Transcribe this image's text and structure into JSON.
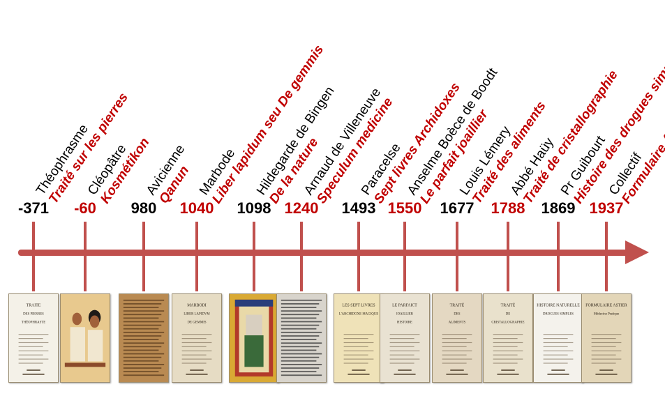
{
  "colors": {
    "accent": "#c0504d",
    "black": "#000000",
    "red": "#c00000"
  },
  "events": [
    {
      "year": "-371",
      "author": "Théophrasme",
      "title": "Traité sur les pierres",
      "year_color": "#000000",
      "thumb": {
        "kind": "titlepage",
        "bg": "#f4f1e8",
        "lines": [
          "TRAITE",
          "DES PIERRES",
          "THÉOPHRASTE"
        ]
      }
    },
    {
      "year": "-60",
      "author": "Cléopâtre",
      "title": "Kosmétikon",
      "year_color": "#c00000",
      "thumb": {
        "kind": "painting",
        "bg": "#e8c98e",
        "accent": "#8a4a2a"
      }
    },
    {
      "year": "980",
      "author": "Avicienne",
      "title": "Qanun",
      "year_color": "#000000",
      "thumb": {
        "kind": "manuscript",
        "bg": "#b98a52",
        "accent": "#5a3a1c"
      }
    },
    {
      "year": "1040",
      "author": "Marbode",
      "title": "Liber lapidum seu De gemmis",
      "year_color": "#c00000",
      "thumb": {
        "kind": "titlepage",
        "bg": "#e6dcc4",
        "lines": [
          "MARBODI",
          "LIBER LAPIDVM",
          "DE GEMMIS"
        ]
      }
    },
    {
      "year": "1098",
      "author": "Hildegarde de Bingen",
      "title": "De la nature",
      "year_color": "#000000",
      "thumb": {
        "kind": "illumination",
        "bg": "#d9a934",
        "accent": "#3a6a3a"
      }
    },
    {
      "year": "1240",
      "author": "Arnaud de Villeneuve",
      "title": "Speculum medicine",
      "year_color": "#c00000",
      "thumb": {
        "kind": "manuscript",
        "bg": "#d8d4cc",
        "accent": "#333333"
      }
    },
    {
      "year": "1493",
      "author": "Paracelse",
      "title": "Sept livres Archidoxes",
      "year_color": "#000000",
      "thumb": {
        "kind": "titlepage",
        "bg": "#efe2b8",
        "lines": [
          "LES SEPT LIVRES",
          "L'ARCHIDOXE MAGIQUE"
        ]
      }
    },
    {
      "year": "1550",
      "author": "Anselme Boèce de Boodt",
      "title": "Le parfait joaillier",
      "year_color": "#c00000",
      "thumb": {
        "kind": "titlepage",
        "bg": "#e9e2d2",
        "lines": [
          "LE PARFAICT",
          "IOAILLIER",
          "HISTOIRE"
        ]
      }
    },
    {
      "year": "1677",
      "author": "Louis Lémery",
      "title": "Traité des aliments",
      "year_color": "#000000",
      "thumb": {
        "kind": "titlepage",
        "bg": "#e4d8c2",
        "lines": [
          "TRAITÉ",
          "DES",
          "ALIMENTS"
        ]
      }
    },
    {
      "year": "1788",
      "author": "Abbé Haüy",
      "title": "Traité de cristallographie",
      "year_color": "#c00000",
      "thumb": {
        "kind": "titlepage",
        "bg": "#e9e1cc",
        "lines": [
          "TRAITÉ",
          "DE",
          "CRISTALLOGRAPHIE"
        ]
      }
    },
    {
      "year": "1869",
      "author": "Pr Guibourt",
      "title": "Histoire des drogues simples",
      "year_color": "#000000",
      "thumb": {
        "kind": "titlepage",
        "bg": "#f4f2ec",
        "lines": [
          "HISTOIRE NATURELLE",
          "DROGUES SIMPLES"
        ]
      }
    },
    {
      "year": "1937",
      "author": "Collectif",
      "title": "Formulaire Astier",
      "year_color": "#c00000",
      "thumb": {
        "kind": "titlepage",
        "bg": "#e3d6b8",
        "lines": [
          "FORMULAIRE ASTIER",
          "Médecine Pratique"
        ]
      }
    }
  ]
}
